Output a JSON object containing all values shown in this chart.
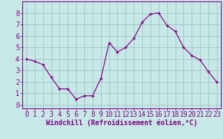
{
  "x": [
    0,
    1,
    2,
    3,
    4,
    5,
    6,
    7,
    8,
    9,
    10,
    11,
    12,
    13,
    14,
    15,
    16,
    17,
    18,
    19,
    20,
    21,
    22,
    23
  ],
  "y": [
    4.0,
    3.8,
    3.5,
    2.4,
    1.4,
    1.4,
    0.5,
    0.8,
    0.8,
    2.3,
    5.4,
    4.6,
    5.0,
    5.8,
    7.2,
    7.9,
    8.0,
    6.9,
    6.4,
    5.0,
    4.3,
    3.9,
    2.9,
    2.0
  ],
  "line_color": "#800080",
  "marker": "+",
  "bg_color": "#c8e8e8",
  "grid_color": "#a0c8c8",
  "xlabel": "Windchill (Refroidissement éolien,°C)",
  "ylabel_ticks": [
    0,
    1,
    2,
    3,
    4,
    5,
    6,
    7,
    8
  ],
  "xlim": [
    -0.5,
    23.5
  ],
  "ylim": [
    -0.3,
    9.0
  ],
  "tick_fontsize": 7,
  "xlabel_fontsize": 7
}
